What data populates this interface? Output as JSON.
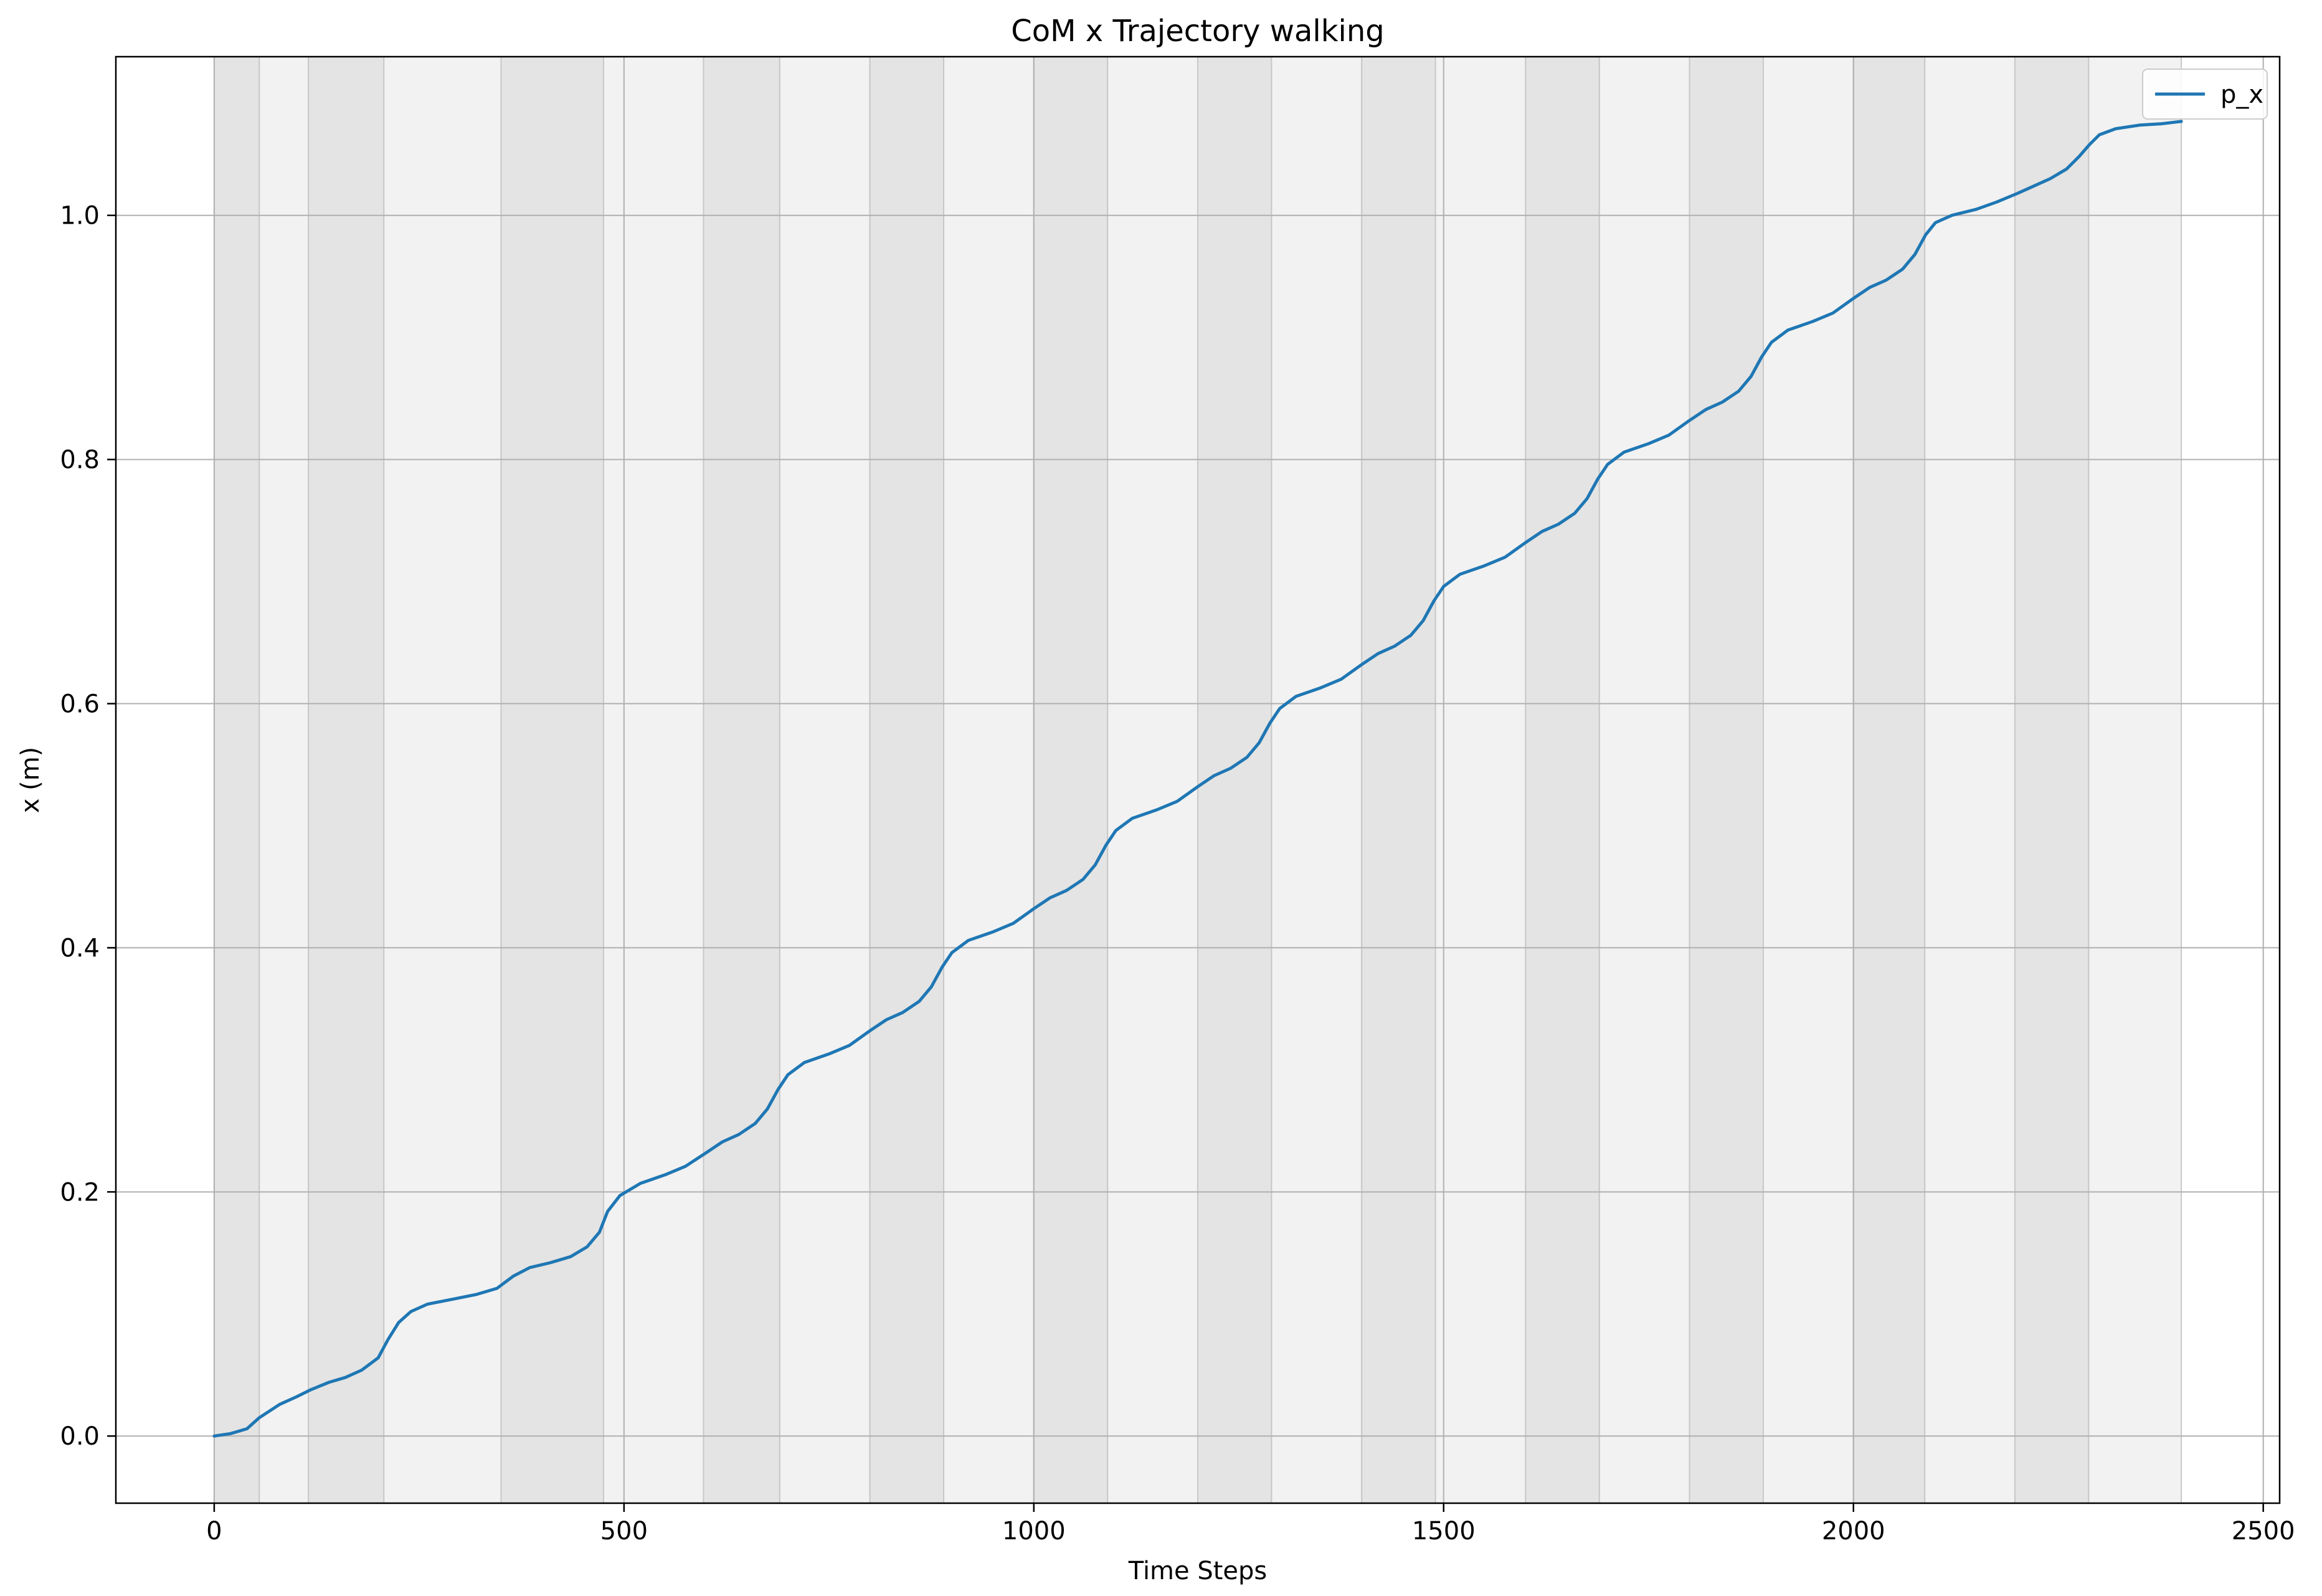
{
  "chart_data": {
    "type": "line",
    "title": "CoM x Trajectory walking",
    "xlabel": "Time Steps",
    "ylabel": "x (m)",
    "xlim": [
      -120,
      2520
    ],
    "ylim": [
      -0.055,
      1.13
    ],
    "xticks": [
      0,
      500,
      1000,
      1500,
      2000,
      2500
    ],
    "yticks": [
      0.0,
      0.2,
      0.4,
      0.6,
      0.8,
      1.0
    ],
    "xtick_labels": [
      "0",
      "500",
      "1000",
      "1500",
      "2000",
      "2500"
    ],
    "ytick_labels": [
      "0.0",
      "0.2",
      "0.4",
      "0.6",
      "0.8",
      "1.0"
    ],
    "grid": true,
    "legend_position": "top-right",
    "series": [
      {
        "name": "p_x",
        "color": "#1f77b4",
        "x": [
          0,
          20,
          40,
          55,
          80,
          100,
          118,
          140,
          160,
          180,
          200,
          212,
          225,
          240,
          260,
          290,
          320,
          345,
          365,
          385,
          410,
          435,
          455,
          470,
          480,
          495,
          520,
          550,
          575,
          600,
          620,
          640,
          660,
          675,
          688,
          700,
          720,
          750,
          775,
          800,
          820,
          840,
          860,
          875,
          888,
          900,
          920,
          950,
          975,
          1000,
          1020,
          1040,
          1060,
          1075,
          1088,
          1100,
          1120,
          1150,
          1175,
          1200,
          1220,
          1240,
          1260,
          1275,
          1288,
          1300,
          1320,
          1350,
          1375,
          1400,
          1420,
          1440,
          1460,
          1475,
          1488,
          1500,
          1520,
          1550,
          1575,
          1600,
          1620,
          1640,
          1660,
          1675,
          1688,
          1700,
          1720,
          1750,
          1775,
          1800,
          1820,
          1840,
          1860,
          1875,
          1888,
          1900,
          1920,
          1950,
          1975,
          2000,
          2020,
          2040,
          2060,
          2075,
          2088,
          2100,
          2120,
          2150,
          2175,
          2200,
          2220,
          2240,
          2260,
          2275,
          2288,
          2300,
          2320,
          2350,
          2375,
          2400
        ],
        "y": [
          0.0,
          0.002,
          0.006,
          0.015,
          0.026,
          0.032,
          0.038,
          0.044,
          0.048,
          0.054,
          0.064,
          0.079,
          0.093,
          0.102,
          0.108,
          0.112,
          0.116,
          0.121,
          0.131,
          0.138,
          0.142,
          0.147,
          0.155,
          0.167,
          0.184,
          0.197,
          0.207,
          0.214,
          0.221,
          0.232,
          0.241,
          0.247,
          0.256,
          0.268,
          0.284,
          0.296,
          0.306,
          0.313,
          0.32,
          0.332,
          0.341,
          0.347,
          0.356,
          0.368,
          0.384,
          0.396,
          0.406,
          0.413,
          0.42,
          0.432,
          0.441,
          0.447,
          0.456,
          0.468,
          0.484,
          0.496,
          0.506,
          0.513,
          0.52,
          0.532,
          0.541,
          0.547,
          0.556,
          0.568,
          0.584,
          0.596,
          0.606,
          0.613,
          0.62,
          0.632,
          0.641,
          0.647,
          0.656,
          0.668,
          0.684,
          0.696,
          0.706,
          0.713,
          0.72,
          0.732,
          0.741,
          0.747,
          0.756,
          0.768,
          0.784,
          0.796,
          0.806,
          0.813,
          0.82,
          0.832,
          0.841,
          0.847,
          0.856,
          0.868,
          0.884,
          0.896,
          0.906,
          0.913,
          0.92,
          0.932,
          0.941,
          0.947,
          0.956,
          0.968,
          0.984,
          0.994,
          1.0,
          1.005,
          1.011,
          1.018,
          1.024,
          1.03,
          1.038,
          1.048,
          1.058,
          1.066,
          1.071,
          1.074,
          1.075,
          1.077
        ]
      }
    ],
    "shaded_bands": [
      {
        "x0": 0,
        "x1": 55,
        "color": "#e4e4e4"
      },
      {
        "x0": 55,
        "x1": 115,
        "color": "#f2f2f2"
      },
      {
        "x0": 115,
        "x1": 207,
        "color": "#e4e4e4"
      },
      {
        "x0": 207,
        "x1": 350,
        "color": "#f2f2f2"
      },
      {
        "x0": 350,
        "x1": 475,
        "color": "#e4e4e4"
      },
      {
        "x0": 475,
        "x1": 597,
        "color": "#f2f2f2"
      },
      {
        "x0": 597,
        "x1": 690,
        "color": "#e4e4e4"
      },
      {
        "x0": 690,
        "x1": 800,
        "color": "#f2f2f2"
      },
      {
        "x0": 800,
        "x1": 890,
        "color": "#e4e4e4"
      },
      {
        "x0": 890,
        "x1": 1000,
        "color": "#f2f2f2"
      },
      {
        "x0": 1000,
        "x1": 1090,
        "color": "#e4e4e4"
      },
      {
        "x0": 1090,
        "x1": 1200,
        "color": "#f2f2f2"
      },
      {
        "x0": 1200,
        "x1": 1290,
        "color": "#e4e4e4"
      },
      {
        "x0": 1290,
        "x1": 1400,
        "color": "#f2f2f2"
      },
      {
        "x0": 1400,
        "x1": 1490,
        "color": "#e4e4e4"
      },
      {
        "x0": 1490,
        "x1": 1600,
        "color": "#f2f2f2"
      },
      {
        "x0": 1600,
        "x1": 1690,
        "color": "#e4e4e4"
      },
      {
        "x0": 1690,
        "x1": 1800,
        "color": "#f2f2f2"
      },
      {
        "x0": 1800,
        "x1": 1890,
        "color": "#e4e4e4"
      },
      {
        "x0": 1890,
        "x1": 2000,
        "color": "#f2f2f2"
      },
      {
        "x0": 2000,
        "x1": 2087,
        "color": "#e4e4e4"
      },
      {
        "x0": 2087,
        "x1": 2197,
        "color": "#f2f2f2"
      },
      {
        "x0": 2197,
        "x1": 2287,
        "color": "#e4e4e4"
      },
      {
        "x0": 2287,
        "x1": 2400,
        "color": "#f2f2f2"
      }
    ]
  }
}
